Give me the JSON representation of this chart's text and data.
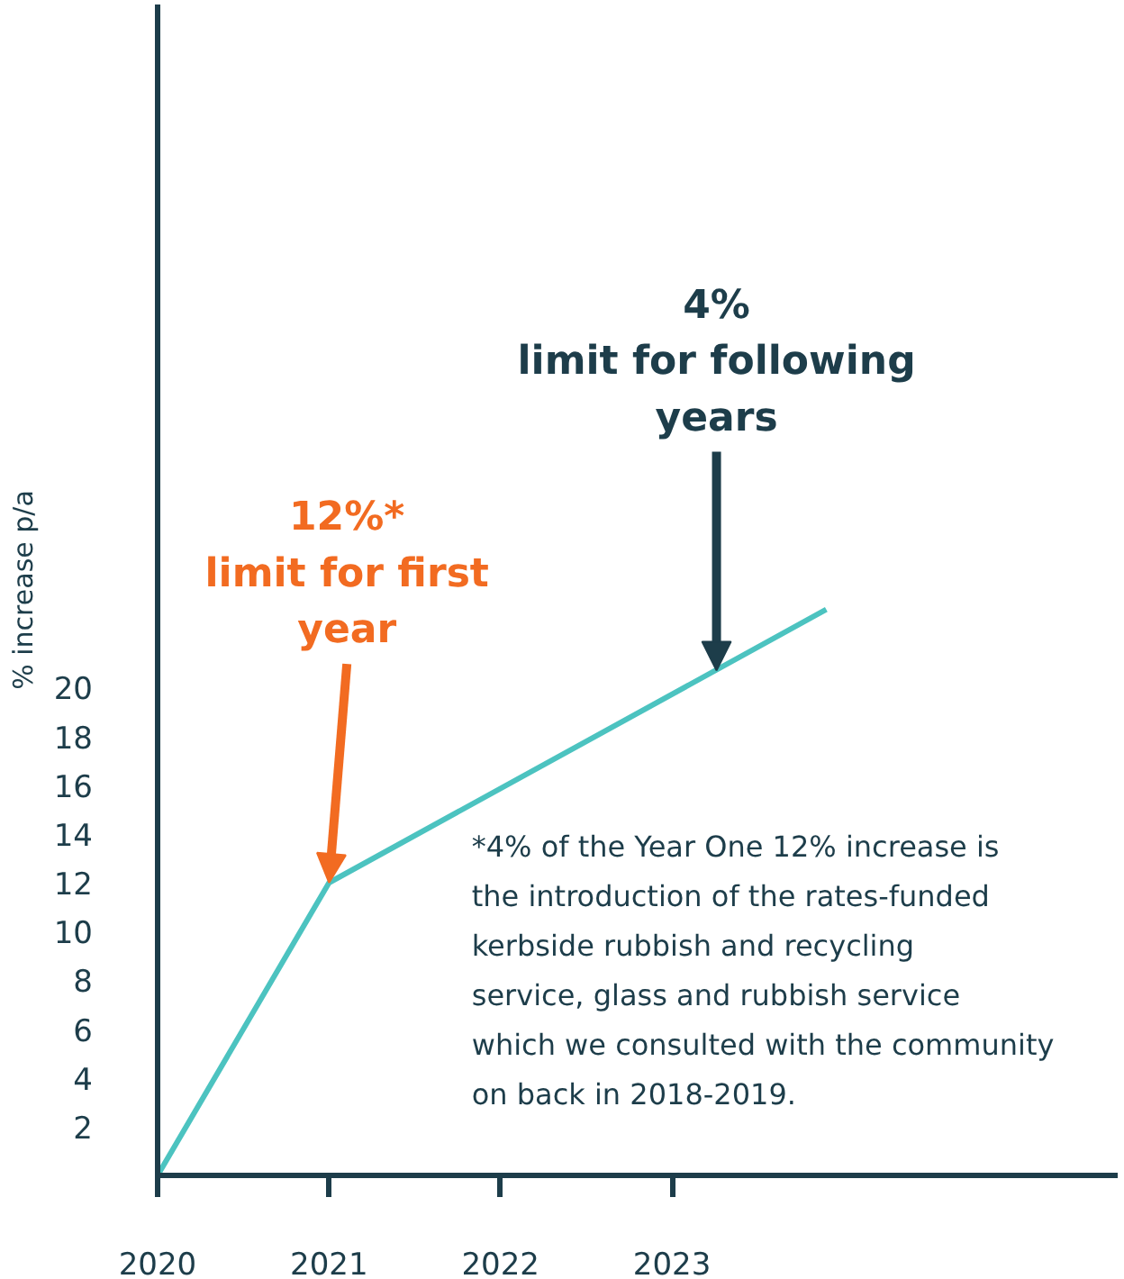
{
  "chart_data": {
    "type": "line",
    "ylabel": "% increase p/a",
    "x": [
      2020,
      2021,
      2023.9
    ],
    "series": [
      {
        "color": "#4cc3c0",
        "values": [
          0,
          12,
          23.2
        ]
      }
    ],
    "xlim": [
      2020,
      2025.6
    ],
    "ylim": [
      0,
      48
    ],
    "xticks": [
      2020,
      2021,
      2022,
      2023
    ],
    "yticks": [
      2,
      4,
      6,
      8,
      10,
      12,
      14,
      16,
      18,
      20
    ],
    "grid": false,
    "annotations": [
      {
        "text": "12%*\nlimit for first year",
        "x": 2021,
        "y": 12
      },
      {
        "text": "4%\nlimit for following years",
        "x": 2023.26,
        "y": 20.7
      },
      "*4% of the Year One 12% increase is the introduction of the rates-funded kerbside rubbish and recycling service, glass and rubbish service which we consulted with the community on back in 2018-2019."
    ]
  }
}
